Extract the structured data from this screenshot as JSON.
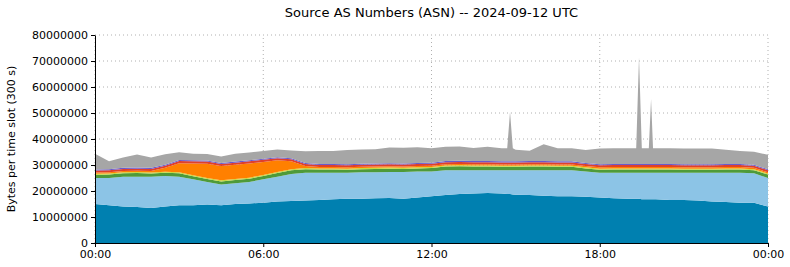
{
  "chart_data": {
    "type": "area",
    "title": "Source AS Numbers (ASN) -- 2024-09-12 UTC",
    "y_label": "Bytes per time slot (300 s)",
    "stacked": true,
    "grid": true,
    "xlim": [
      0,
      24
    ],
    "xticks": [
      {
        "value": 0,
        "label": "00:00"
      },
      {
        "value": 6,
        "label": "06:00"
      },
      {
        "value": 12,
        "label": "12:00"
      },
      {
        "value": 18,
        "label": "18:00"
      },
      {
        "value": 24,
        "label": "00:00"
      }
    ],
    "ylim": [
      0,
      80000000
    ],
    "yticks": [
      0,
      10000000,
      20000000,
      30000000,
      40000000,
      50000000,
      60000000,
      70000000,
      80000000
    ],
    "x": [
      0,
      0.5,
      1,
      1.5,
      2,
      2.5,
      3,
      3.5,
      4,
      4.5,
      5,
      5.5,
      6,
      6.5,
      7,
      7.5,
      8,
      8.5,
      9,
      9.5,
      10,
      10.5,
      11,
      11.5,
      12,
      12.5,
      13,
      13.5,
      14,
      14.5,
      14.7,
      14.8,
      14.9,
      15,
      15.5,
      16,
      16.5,
      17,
      17.5,
      18,
      18.5,
      19,
      19.3,
      19.4,
      19.5,
      19.75,
      19.83,
      19.9,
      20,
      20.5,
      21,
      21.5,
      22,
      22.5,
      23,
      23.5,
      24
    ],
    "series": [
      {
        "color": "#0080b0",
        "values": [
          15000000,
          14500000,
          14000000,
          13800000,
          13500000,
          14000000,
          14500000,
          14500000,
          14800000,
          14500000,
          15000000,
          15200000,
          15500000,
          16000000,
          16200000,
          16300000,
          16500000,
          16800000,
          17000000,
          17000000,
          17200000,
          17300000,
          17000000,
          17500000,
          18000000,
          18500000,
          18800000,
          19000000,
          19200000,
          19000000,
          18800000,
          18800000,
          18700000,
          18600000,
          18500000,
          18200000,
          18000000,
          18000000,
          17800000,
          17500000,
          17200000,
          17000000,
          17000000,
          17000000,
          16800000,
          16800000,
          16800000,
          16800000,
          16800000,
          16500000,
          16500000,
          16300000,
          16000000,
          15800000,
          15500000,
          15500000,
          14000000
        ]
      },
      {
        "color": "#8cc4e6",
        "values": [
          10000000,
          10500000,
          11500000,
          11700000,
          12000000,
          11800000,
          11000000,
          10000000,
          8700000,
          8000000,
          8000000,
          8300000,
          9000000,
          9500000,
          10300000,
          10700000,
          10500000,
          10200000,
          10000000,
          10200000,
          10000000,
          10000000,
          10300000,
          10000000,
          9500000,
          9500000,
          9200000,
          9000000,
          8800000,
          9000000,
          9200000,
          9200000,
          9300000,
          9400000,
          9500000,
          9800000,
          10000000,
          10000000,
          9700000,
          9500000,
          9800000,
          10000000,
          10000000,
          10000000,
          10200000,
          10200000,
          10200000,
          10200000,
          10200000,
          10500000,
          10500000,
          10700000,
          11000000,
          11200000,
          11500000,
          11300000,
          11000000
        ]
      },
      {
        "color": "#4e9a3a",
        "values": [
          1200000,
          1300000,
          1300000,
          1400000,
          1200000,
          1200000,
          1300000,
          1200000,
          1100000,
          1200000,
          1200000,
          1200000,
          1300000,
          1400000,
          1500000,
          1400000,
          1300000,
          1300000,
          1200000,
          1200000,
          1300000,
          1300000,
          1200000,
          1200000,
          1300000,
          1400000,
          1500000,
          1400000,
          1400000,
          1300000,
          1300000,
          1300000,
          1300000,
          1300000,
          1400000,
          1400000,
          1300000,
          1300000,
          1200000,
          1200000,
          1300000,
          1300000,
          1300000,
          1300000,
          1300000,
          1300000,
          1300000,
          1300000,
          1300000,
          1300000,
          1200000,
          1200000,
          1200000,
          1300000,
          1300000,
          1200000,
          1300000
        ]
      },
      {
        "color": "#c8d840",
        "values": [
          400000,
          400000,
          400000,
          400000,
          400000,
          400000,
          400000,
          400000,
          400000,
          400000,
          400000,
          400000,
          400000,
          400000,
          400000,
          400000,
          400000,
          400000,
          400000,
          400000,
          400000,
          400000,
          400000,
          400000,
          400000,
          400000,
          400000,
          400000,
          400000,
          400000,
          400000,
          400000,
          400000,
          400000,
          400000,
          400000,
          400000,
          400000,
          400000,
          400000,
          400000,
          400000,
          400000,
          400000,
          400000,
          400000,
          400000,
          400000,
          400000,
          400000,
          400000,
          400000,
          400000,
          400000,
          400000,
          400000,
          400000
        ]
      },
      {
        "color": "#ff8000",
        "values": [
          500000,
          500000,
          500000,
          500000,
          600000,
          1500000,
          3500000,
          4500000,
          5500000,
          5500000,
          5500000,
          5500000,
          5000000,
          4500000,
          3000000,
          800000,
          500000,
          500000,
          500000,
          500000,
          500000,
          500000,
          500000,
          500000,
          500000,
          500000,
          500000,
          500000,
          500000,
          500000,
          500000,
          500000,
          500000,
          500000,
          500000,
          500000,
          500000,
          500000,
          500000,
          500000,
          500000,
          500000,
          500000,
          500000,
          500000,
          500000,
          500000,
          500000,
          500000,
          500000,
          500000,
          500000,
          500000,
          500000,
          500000,
          500000,
          500000
        ]
      },
      {
        "color": "#e0402a",
        "values": [
          800000,
          800000,
          800000,
          800000,
          800000,
          800000,
          800000,
          800000,
          800000,
          800000,
          800000,
          800000,
          800000,
          800000,
          800000,
          800000,
          800000,
          800000,
          800000,
          800000,
          800000,
          800000,
          800000,
          800000,
          800000,
          800000,
          800000,
          800000,
          800000,
          800000,
          800000,
          800000,
          800000,
          800000,
          800000,
          800000,
          800000,
          800000,
          800000,
          800000,
          800000,
          800000,
          800000,
          800000,
          800000,
          800000,
          800000,
          800000,
          800000,
          800000,
          800000,
          800000,
          800000,
          800000,
          800000,
          800000,
          800000
        ]
      },
      {
        "color": "#6a5acd",
        "values": [
          400000,
          400000,
          400000,
          400000,
          400000,
          400000,
          400000,
          400000,
          400000,
          400000,
          400000,
          400000,
          400000,
          400000,
          400000,
          400000,
          400000,
          400000,
          400000,
          400000,
          400000,
          400000,
          400000,
          400000,
          400000,
          400000,
          400000,
          400000,
          400000,
          400000,
          400000,
          400000,
          400000,
          400000,
          400000,
          400000,
          400000,
          400000,
          400000,
          400000,
          400000,
          400000,
          400000,
          400000,
          400000,
          400000,
          400000,
          400000,
          400000,
          400000,
          400000,
          400000,
          400000,
          400000,
          400000,
          400000,
          400000
        ]
      },
      {
        "color": "#a6a6a6",
        "values": [
          6000000,
          3000000,
          4000000,
          5000000,
          4000000,
          4000000,
          3000000,
          2500000,
          2500000,
          2500000,
          3000000,
          3000000,
          3000000,
          3000000,
          3000000,
          4500000,
          5000000,
          5000000,
          5500000,
          5500000,
          5500000,
          6000000,
          6000000,
          6000000,
          5500000,
          5500000,
          5500000,
          5000000,
          5500000,
          5000000,
          5000000,
          19000000,
          5000000,
          4500000,
          4000000,
          6500000,
          5000000,
          5000000,
          5000000,
          6000000,
          6000000,
          6000000,
          6000000,
          41000000,
          6000000,
          6000000,
          25000000,
          6000000,
          6000000,
          6000000,
          6000000,
          6000000,
          6000000,
          5500000,
          5000000,
          5000000,
          5500000
        ]
      }
    ]
  }
}
